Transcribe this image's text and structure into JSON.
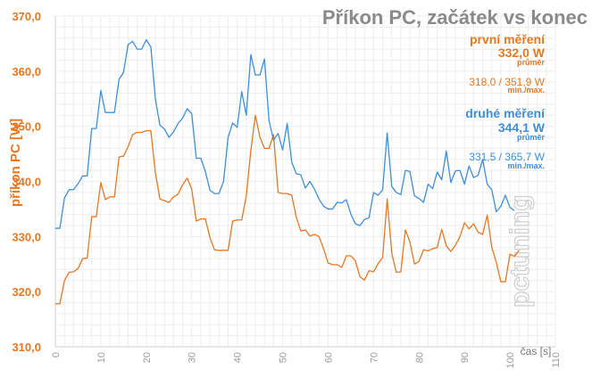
{
  "chart_data": {
    "type": "line",
    "title": "Příkon PC, začátek vs konec",
    "xlabel": "čas [s]",
    "ylabel": "příkon PC [W]",
    "xlim": [
      0,
      110
    ],
    "ylim": [
      310,
      370
    ],
    "xticks": [
      0,
      10,
      20,
      30,
      40,
      50,
      60,
      70,
      80,
      90,
      100,
      110
    ],
    "yticks": [
      "310,0",
      "320,0",
      "330,0",
      "340,0",
      "350,0",
      "360,0",
      "370,0"
    ],
    "ytick_values": [
      310,
      320,
      330,
      340,
      350,
      360,
      370
    ],
    "grid": true,
    "series": [
      {
        "name": "první měření",
        "color": "#e87722",
        "values": [
          317.8,
          317.8,
          322,
          323.5,
          323.6,
          324.2,
          326,
          326.1,
          333.6,
          333.6,
          339.8,
          336.7,
          337.2,
          337.2,
          344.4,
          344.6,
          346.3,
          348.5,
          348.9,
          348.9,
          349.2,
          349.2,
          341.6,
          336.8,
          336.5,
          336.2,
          337.2,
          337.7,
          339.4,
          340.6,
          338.6,
          332.8,
          333.2,
          333.2,
          329.8,
          327.6,
          327.5,
          327.5,
          327.5,
          332.8,
          333,
          333,
          337.4,
          345.6,
          352,
          348,
          346,
          346,
          348.5,
          338,
          337.8,
          337.8,
          337.5,
          333.5,
          331,
          331.2,
          330.1,
          330.4,
          330,
          327.8,
          325.2,
          324.9,
          324.9,
          324.4,
          326.5,
          326.5,
          325.6,
          322.7,
          322.1,
          323.8,
          323.6,
          325.1,
          326.2,
          336.8,
          327,
          323.5,
          323.6,
          331.2,
          329,
          325,
          325.5,
          327.6,
          327.4,
          327.8,
          328,
          331.3,
          328.3,
          327.3,
          328.4,
          330,
          332.5,
          331.4,
          332.3,
          330.8,
          330.4,
          333.9,
          328.1,
          325.3,
          321.8,
          321.8,
          326.8,
          326.4,
          327.5
        ]
      },
      {
        "name": "druhé měření",
        "color": "#3d8fdc",
        "values": [
          331.5,
          331.5,
          337,
          338.5,
          338.5,
          339.6,
          341,
          341,
          349.6,
          349.6,
          356.5,
          352.5,
          352.5,
          352.5,
          358.5,
          359.8,
          364.8,
          365.4,
          364,
          364,
          365.7,
          364.4,
          355,
          350.2,
          349.5,
          348,
          349,
          350.5,
          351.5,
          353.2,
          352.3,
          344.2,
          344.2,
          341.8,
          338.4,
          337.8,
          337.8,
          340,
          348,
          350.6,
          349.8,
          356.3,
          352,
          363,
          359.3,
          359.3,
          362.2,
          351,
          347.5,
          348.7,
          345.7,
          350.5,
          343.5,
          341.4,
          341.2,
          338.8,
          340,
          338.6,
          336.8,
          335.5,
          335,
          335,
          336.2,
          336.1,
          336.7,
          334.1,
          332.3,
          332,
          333.1,
          333.4,
          338,
          337.5,
          338.5,
          348.8,
          339.1,
          338,
          337.6,
          342,
          341.8,
          337.4,
          336.9,
          336.2,
          339.5,
          338.7,
          341.7,
          340.3,
          345.5,
          339.8,
          341.9,
          342,
          339.5,
          342.8,
          340.7,
          341.1,
          344,
          339.5,
          338.5,
          334.5,
          335.5,
          337.5,
          335.3,
          334.7
        ]
      }
    ],
    "annotations": [
      {
        "label": "první měření",
        "value": "332,0 W",
        "value_caption": "průměr",
        "range": "318,0 / 351,9 W",
        "range_caption": "min./max.",
        "color": "#e87722"
      },
      {
        "label": "druhé měření",
        "value": "344,1 W",
        "value_caption": "průměr",
        "range": "331,5 / 365,7 W",
        "range_caption": "min./max.",
        "color": "#3d8fdc"
      }
    ],
    "watermark": "pctuning"
  }
}
